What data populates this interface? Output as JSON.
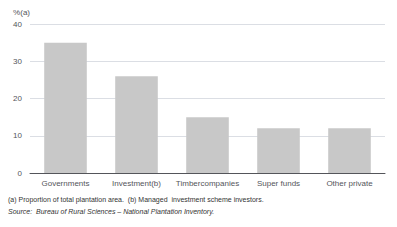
{
  "chart_data": {
    "type": "bar",
    "categories": [
      "Governments",
      "Investment(b)",
      "Timbercompanies",
      "Super funds",
      "Other private"
    ],
    "values": [
      35,
      26,
      15,
      12,
      12
    ],
    "color": "#c8c8c8",
    "ylabel": "%(a)",
    "ylim": [
      0,
      40
    ],
    "yticks": [
      0,
      10,
      20,
      30,
      40
    ],
    "grid": true,
    "annotations": [
      "(a) Proportion of total plantation area.  (b) Managed  investment scheme investors.",
      "Source:  Bureau of Rural Sciences – National Plantation Inventory."
    ]
  }
}
